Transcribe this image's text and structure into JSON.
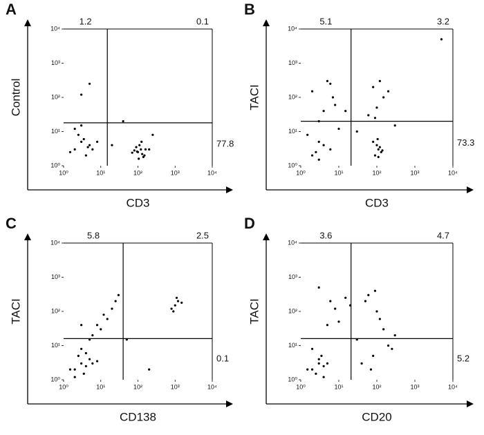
{
  "chart_data": [
    {
      "type": "scatter",
      "panel_label": "A",
      "x_label": "CD3",
      "y_label": "Control",
      "log": true,
      "xlim": [
        1,
        10000
      ],
      "ylim": [
        1,
        10000
      ],
      "xticks": [
        {
          "value": 1,
          "label": "10⁰"
        },
        {
          "value": 10,
          "label": "10¹"
        },
        {
          "value": 100,
          "label": "10²"
        },
        {
          "value": 1000,
          "label": "10³"
        },
        {
          "value": 10000,
          "label": "10⁴"
        }
      ],
      "yticks": [
        {
          "value": 1,
          "label": "10⁰"
        },
        {
          "value": 10,
          "label": "10¹"
        },
        {
          "value": 100,
          "label": "10²"
        },
        {
          "value": 1000,
          "label": "10³"
        },
        {
          "value": 10000,
          "label": "10⁴"
        }
      ],
      "gates": {
        "x": 15,
        "y": 18
      },
      "quadrants": {
        "upper_left": 1.2,
        "upper_right": 0.1,
        "lower_right": 77.8
      },
      "color": "#000000",
      "points": {
        "x": [
          2,
          3,
          4,
          5,
          2.5,
          6,
          3.5,
          1.5,
          8,
          2,
          4.5,
          3,
          100,
          120,
          150,
          90,
          130,
          80,
          110,
          160,
          140,
          95,
          200,
          70,
          125,
          105,
          20,
          40,
          5,
          250,
          3
        ],
        "y": [
          3,
          5,
          2,
          4,
          8,
          3,
          6,
          2.5,
          5,
          12,
          3.5,
          15,
          2.5,
          3,
          2,
          3.5,
          2.2,
          2.8,
          4,
          3,
          1.8,
          2.6,
          3,
          2.4,
          5,
          1.6,
          4,
          20,
          250,
          8,
          120
        ]
      }
    },
    {
      "type": "scatter",
      "panel_label": "B",
      "x_label": "CD3",
      "y_label": "TACI",
      "log": true,
      "xlim": [
        1,
        10000
      ],
      "ylim": [
        1,
        10000
      ],
      "xticks": [
        {
          "value": 1,
          "label": "10⁰"
        },
        {
          "value": 10,
          "label": "10¹"
        },
        {
          "value": 100,
          "label": "10²"
        },
        {
          "value": 1000,
          "label": "10³"
        },
        {
          "value": 10000,
          "label": "10⁴"
        }
      ],
      "yticks": [
        {
          "value": 1,
          "label": "10⁰"
        },
        {
          "value": 10,
          "label": "10¹"
        },
        {
          "value": 100,
          "label": "10²"
        },
        {
          "value": 1000,
          "label": "10³"
        },
        {
          "value": 10000,
          "label": "10⁴"
        }
      ],
      "gates": {
        "x": 21,
        "y": 20
      },
      "quadrants": {
        "upper_left": 5.1,
        "upper_right": 3.2,
        "lower_right": 73.3
      },
      "color": "#000000",
      "points": {
        "x": [
          2,
          4,
          6,
          3,
          8,
          2,
          5,
          1.5,
          3,
          7,
          4,
          10,
          2.5,
          6,
          80,
          120,
          150,
          100,
          60,
          200,
          90,
          110,
          130,
          100,
          90,
          120,
          140,
          80,
          110,
          105,
          30,
          300,
          5000,
          3,
          15
        ],
        "y": [
          2,
          4,
          3,
          20,
          60,
          150,
          300,
          8,
          5,
          100,
          40,
          12,
          2.5,
          250,
          200,
          300,
          100,
          50,
          30,
          150,
          25,
          3,
          2.5,
          4,
          2,
          3.5,
          2.8,
          5,
          1.8,
          6,
          10,
          15,
          5000,
          1.5,
          40
        ]
      }
    },
    {
      "type": "scatter",
      "panel_label": "C",
      "x_label": "CD138",
      "y_label": "TACI",
      "log": true,
      "xlim": [
        1,
        10000
      ],
      "ylim": [
        1,
        10000
      ],
      "xticks": [
        {
          "value": 1,
          "label": "10⁰"
        },
        {
          "value": 10,
          "label": "10¹"
        },
        {
          "value": 100,
          "label": "10²"
        },
        {
          "value": 1000,
          "label": "10³"
        },
        {
          "value": 10000,
          "label": "10⁴"
        }
      ],
      "yticks": [
        {
          "value": 1,
          "label": "10⁰"
        },
        {
          "value": 10,
          "label": "10¹"
        },
        {
          "value": 100,
          "label": "10²"
        },
        {
          "value": 1000,
          "label": "10³"
        },
        {
          "value": 10000,
          "label": "10⁴"
        }
      ],
      "gates": {
        "x": 40,
        "y": 16
      },
      "quadrants": {
        "upper_left": 5.8,
        "upper_right": 2.5,
        "lower_right": 0.1
      },
      "color": "#000000",
      "points": {
        "x": [
          2,
          3,
          4,
          5,
          6,
          2.5,
          3.5,
          1.5,
          8,
          4,
          3,
          5,
          10,
          15,
          20,
          25,
          8,
          12,
          30,
          6,
          1000,
          1200,
          900,
          1500,
          1100,
          800,
          3,
          50,
          200,
          2
        ],
        "y": [
          2,
          3,
          2.5,
          4,
          3,
          5,
          1.5,
          2,
          3.5,
          6,
          8,
          15,
          30,
          60,
          120,
          200,
          40,
          80,
          300,
          20,
          150,
          200,
          100,
          180,
          250,
          120,
          40,
          15,
          2,
          1.2
        ]
      }
    },
    {
      "type": "scatter",
      "panel_label": "D",
      "x_label": "CD20",
      "y_label": "TACI",
      "log": true,
      "xlim": [
        1,
        10000
      ],
      "ylim": [
        1,
        10000
      ],
      "xticks": [
        {
          "value": 1,
          "label": "10⁰"
        },
        {
          "value": 10,
          "label": "10¹"
        },
        {
          "value": 100,
          "label": "10²"
        },
        {
          "value": 1000,
          "label": "10³"
        },
        {
          "value": 10000,
          "label": "10⁴"
        }
      ],
      "yticks": [
        {
          "value": 1,
          "label": "10⁰"
        },
        {
          "value": 10,
          "label": "10¹"
        },
        {
          "value": 100,
          "label": "10²"
        },
        {
          "value": 1000,
          "label": "10³"
        },
        {
          "value": 10000,
          "label": "10⁴"
        }
      ],
      "gates": {
        "x": 21,
        "y": 16
      },
      "quadrants": {
        "upper_left": 3.6,
        "upper_right": 4.7,
        "lower_right": 5.2
      },
      "color": "#000000",
      "points": {
        "x": [
          2,
          3,
          2.5,
          4,
          1.5,
          3,
          3.5,
          5,
          2,
          4,
          10,
          20,
          50,
          100,
          150,
          200,
          80,
          300,
          60,
          120,
          30,
          15,
          40,
          250,
          8,
          3,
          5,
          6,
          70,
          90
        ],
        "y": [
          2,
          3,
          1.5,
          2.5,
          2,
          4,
          5,
          3,
          8,
          1.2,
          50,
          150,
          200,
          100,
          30,
          10,
          5,
          20,
          300,
          60,
          15,
          250,
          3,
          8,
          120,
          500,
          40,
          200,
          2,
          400
        ]
      }
    }
  ]
}
